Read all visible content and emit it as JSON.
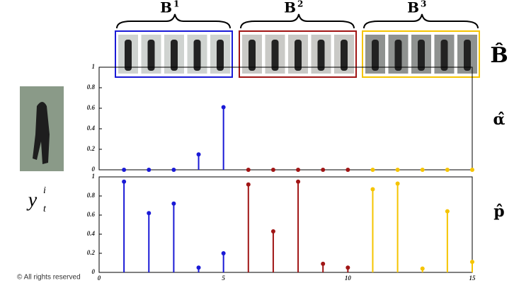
{
  "groups": [
    {
      "base": "B",
      "sup": "1"
    },
    {
      "base": "B",
      "sup": "2"
    },
    {
      "base": "B",
      "sup": "3"
    }
  ],
  "dictionary_label": "B̂",
  "query": {
    "base": "y",
    "sub": "t",
    "sup": "i"
  },
  "copyright": "© All rights reserved",
  "chart_data": [
    {
      "type": "stem",
      "label": "α̂",
      "xlim": [
        0,
        15
      ],
      "ylim": [
        0,
        1
      ],
      "yticks": [
        0,
        0.2,
        0.4,
        0.6,
        0.8,
        1
      ],
      "series": [
        {
          "color": "#1a1ad6",
          "x": [
            1,
            2,
            3,
            4,
            5
          ],
          "values": [
            0,
            0,
            0,
            0.15,
            0.61
          ]
        },
        {
          "color": "#a01515",
          "x": [
            6,
            7,
            8,
            9,
            10
          ],
          "values": [
            0,
            0,
            0,
            0,
            0
          ]
        },
        {
          "color": "#f5c400",
          "x": [
            11,
            12,
            13,
            14,
            15
          ],
          "values": [
            0,
            0,
            0,
            0,
            0
          ]
        }
      ]
    },
    {
      "type": "stem",
      "label": "p̂",
      "xlim": [
        0,
        15
      ],
      "ylim": [
        0,
        1
      ],
      "yticks": [
        0,
        0.2,
        0.4,
        0.6,
        0.8,
        1
      ],
      "xticks": [
        0,
        5,
        10,
        15
      ],
      "series": [
        {
          "color": "#1a1ad6",
          "x": [
            1,
            2,
            3,
            4,
            5
          ],
          "values": [
            0.95,
            0.62,
            0.72,
            0.05,
            0.2
          ]
        },
        {
          "color": "#a01515",
          "x": [
            6,
            7,
            8,
            9,
            10
          ],
          "values": [
            0.92,
            0.43,
            0.95,
            0.09,
            0.05
          ]
        },
        {
          "color": "#f5c400",
          "x": [
            11,
            12,
            13,
            14,
            15
          ],
          "values": [
            0.87,
            0.93,
            0.04,
            0.64,
            0.11
          ]
        }
      ]
    }
  ]
}
